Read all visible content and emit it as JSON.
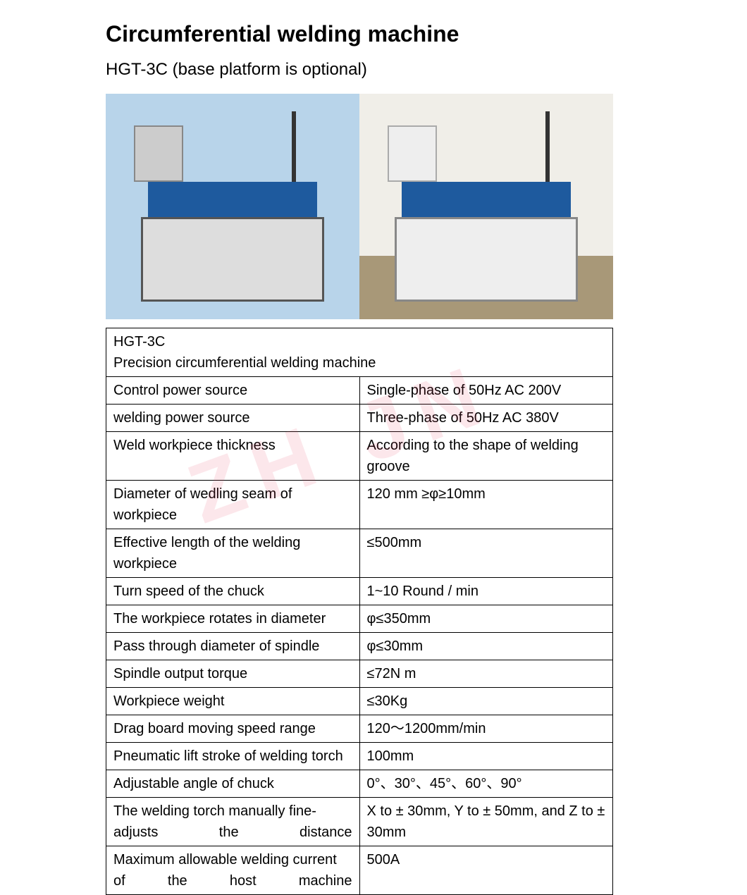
{
  "title": "Circumferential welding machine",
  "subtitle": "HGT-3C (base platform is optional)",
  "watermark_text": "ZH   JN",
  "table": {
    "model": "HGT-3C",
    "description": "Precision circumferential welding machine",
    "header_bg": "#ffffff",
    "border_color": "#000000",
    "font_size": 20,
    "col_widths": [
      "50%",
      "50%"
    ],
    "rows": [
      {
        "label": "Control power source",
        "value": "Single-phase of 50Hz AC 200V"
      },
      {
        "label": "welding power source",
        "value": "Three-phase of 50Hz AC 380V"
      },
      {
        "label": "Weld workpiece thickness",
        "value": "According to the shape of welding groove",
        "label_justify": false,
        "value_justify": true
      },
      {
        "label": "Diameter of wedling seam of workpiece",
        "value": "120 mm ≥φ≥10mm",
        "label_justify": true
      },
      {
        "label": "Effective length of the welding workpiece",
        "value": "≤500mm",
        "label_justify": true
      },
      {
        "label": "Turn speed of the chuck",
        "value": "1~10 Round / min"
      },
      {
        "label": "The workpiece rotates in diameter",
        "value": "φ≤350mm"
      },
      {
        "label": "Pass through diameter of spindle",
        "value": "φ≤30mm"
      },
      {
        "label": "Spindle output torque",
        "value": "≤72N m"
      },
      {
        "label": "Workpiece weight",
        "value": "≤30Kg"
      },
      {
        "label": "Drag board moving speed range",
        "value": "120～1200mm/min"
      },
      {
        "label": "Pneumatic lift stroke of welding torch",
        "value": "100mm"
      },
      {
        "label": "Adjustable angle of chuck",
        "value": "0°、30°、45°、60°、90°"
      },
      {
        "label": "The welding torch manually fine-adjusts the distance",
        "value": "X to ± 30mm, Y to ± 50mm, and Z to ± 30mm",
        "label_justify": true
      },
      {
        "label": "Maximum allowable welding current of the host machine",
        "value": "500A",
        "label_justify": true
      }
    ]
  },
  "images": {
    "left_bg": "#b8d4ea",
    "right_bg": "#e8e6e2",
    "machine_color": "#1e5a9e",
    "frame_color": "#555555"
  },
  "colors": {
    "text": "#000000",
    "background": "#ffffff",
    "watermark": "rgba(230,60,90,0.12)"
  },
  "typography": {
    "title_size": 32,
    "title_weight": "bold",
    "subtitle_size": 24,
    "body_size": 20,
    "font_family": "Arial"
  }
}
